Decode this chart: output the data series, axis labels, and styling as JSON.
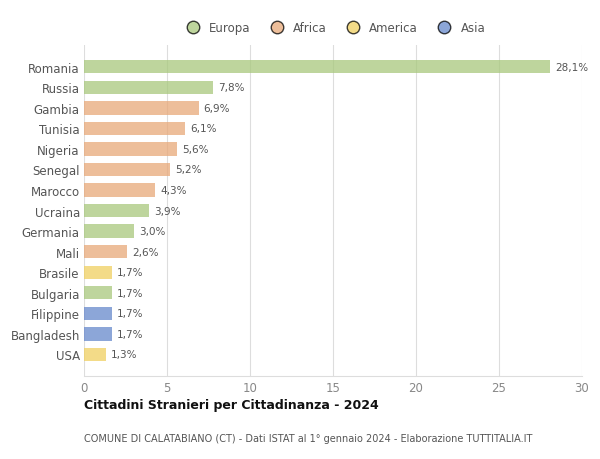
{
  "countries": [
    "Romania",
    "Russia",
    "Gambia",
    "Tunisia",
    "Nigeria",
    "Senegal",
    "Marocco",
    "Ucraina",
    "Germania",
    "Mali",
    "Brasile",
    "Bulgaria",
    "Filippine",
    "Bangladesh",
    "USA"
  ],
  "values": [
    28.1,
    7.8,
    6.9,
    6.1,
    5.6,
    5.2,
    4.3,
    3.9,
    3.0,
    2.6,
    1.7,
    1.7,
    1.7,
    1.7,
    1.3
  ],
  "labels": [
    "28,1%",
    "7,8%",
    "6,9%",
    "6,1%",
    "5,6%",
    "5,2%",
    "4,3%",
    "3,9%",
    "3,0%",
    "2,6%",
    "1,7%",
    "1,7%",
    "1,7%",
    "1,7%",
    "1,3%"
  ],
  "continents": [
    "Europa",
    "Europa",
    "Africa",
    "Africa",
    "Africa",
    "Africa",
    "Africa",
    "Europa",
    "Europa",
    "Africa",
    "America",
    "Europa",
    "Asia",
    "Asia",
    "America"
  ],
  "continent_colors": {
    "Europa": "#a8c87c",
    "Africa": "#e8a878",
    "America": "#f0d060",
    "Asia": "#6688cc"
  },
  "legend_order": [
    "Europa",
    "Africa",
    "America",
    "Asia"
  ],
  "xlim": [
    0,
    30
  ],
  "xticks": [
    0,
    5,
    10,
    15,
    20,
    25,
    30
  ],
  "title": "Cittadini Stranieri per Cittadinanza - 2024",
  "subtitle": "COMUNE DI CALATABIANO (CT) - Dati ISTAT al 1° gennaio 2024 - Elaborazione TUTTITALIA.IT",
  "bg_color": "#ffffff",
  "grid_color": "#dddddd",
  "bar_height": 0.65,
  "bar_alpha": 0.75
}
